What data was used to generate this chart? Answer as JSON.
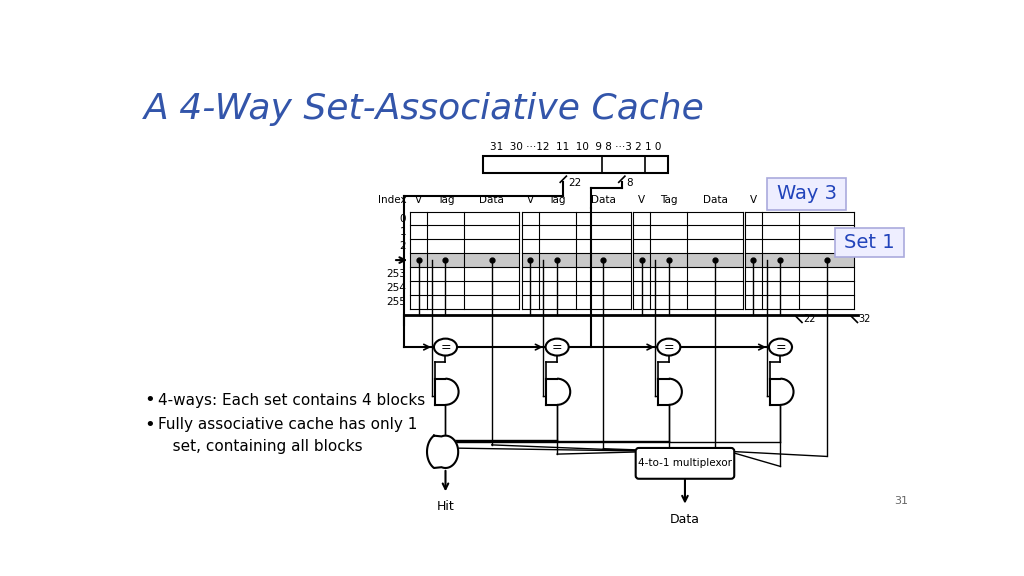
{
  "title": "A 4-Way Set-Associative Cache",
  "title_color": "#3355aa",
  "title_fontsize": 26,
  "bg_color": "#ffffff",
  "bullet1": "4-ways: Each set contains 4 blocks",
  "bullet2": "Fully associative cache has only 1",
  "bullet3": "   set, containing all blocks",
  "address_bits": "31  30 ···12  11  10  9 8 ···3 2 1 0",
  "way3_label": "Way 3",
  "set1_label": "Set 1",
  "col_headers": [
    "V",
    "Tag",
    "Data"
  ],
  "index_label": "Index",
  "num_rows": 7,
  "highlighted_row": 3,
  "gray_color": "#c8c8c8",
  "black": "#000000",
  "blue": "#2244bb",
  "light_blue_bg": "#eeeeff",
  "slide_number": "31",
  "footnote_22_left": "22",
  "footnote_8": "8",
  "footnote_22_right": "22",
  "footnote_32": "32"
}
